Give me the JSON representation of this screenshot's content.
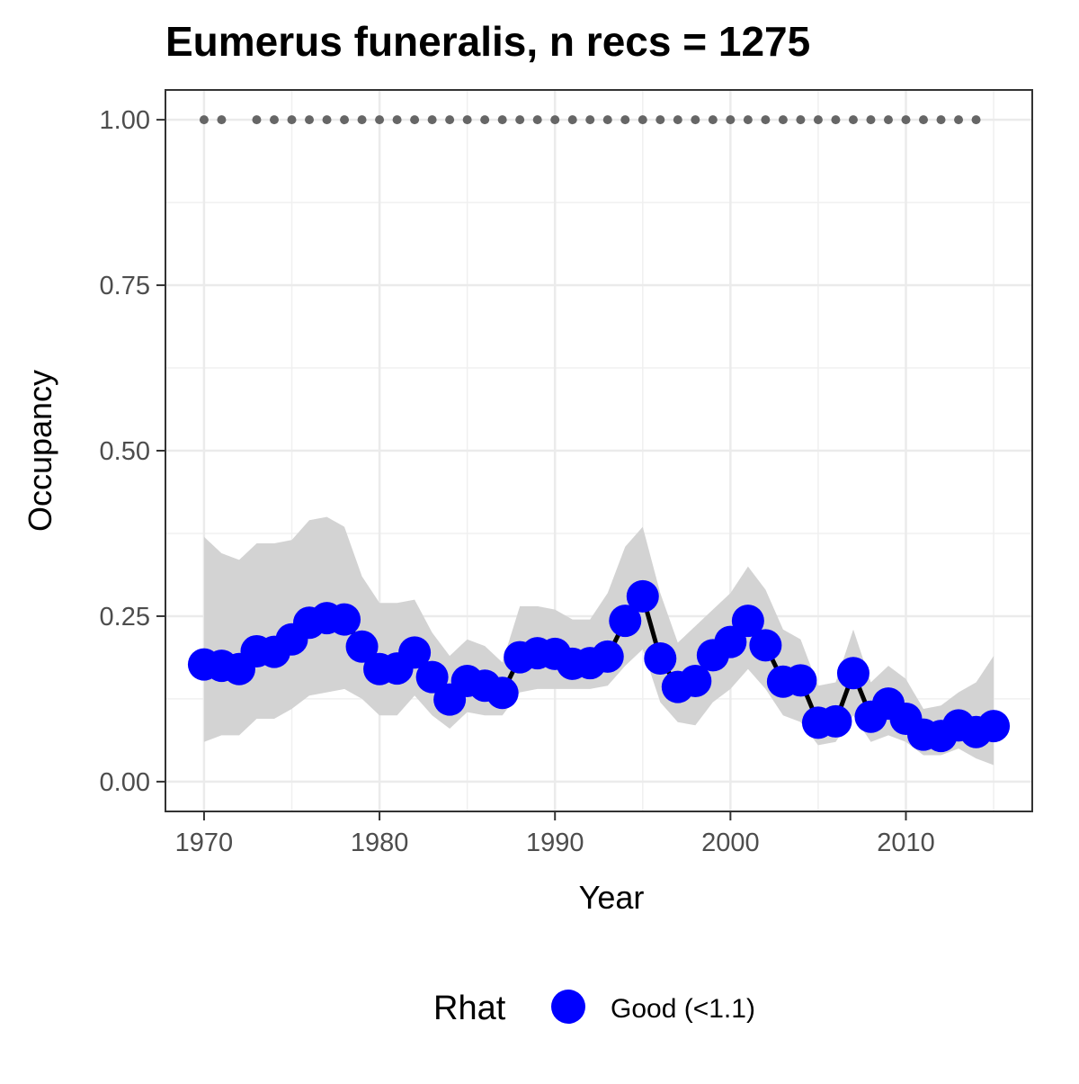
{
  "chart_data": {
    "type": "line",
    "title": "Eumerus funeralis, n recs = 1275",
    "xlabel": "Year",
    "ylabel": "Occupancy",
    "xlim": [
      1967.8,
      2017.2
    ],
    "ylim": [
      -0.045,
      1.045
    ],
    "x_ticks": [
      "1970",
      "1980",
      "1990",
      "2000",
      "2010"
    ],
    "y_ticks": [
      "0.00",
      "0.25",
      "0.50",
      "0.75",
      "1.00"
    ],
    "grid": true,
    "legend": {
      "title": "Rhat",
      "position": "bottom",
      "entries": [
        {
          "label": "Good (<1.1)",
          "color": "#0000ff"
        }
      ]
    },
    "series": [
      {
        "name": "Good (<1.1)",
        "color": "#0000ff",
        "line_color": "#000000",
        "band_color": "#d3d3d3",
        "x": [
          1970,
          1971,
          1972,
          1973,
          1974,
          1975,
          1976,
          1977,
          1978,
          1979,
          1980,
          1981,
          1982,
          1983,
          1984,
          1985,
          1986,
          1987,
          1988,
          1989,
          1990,
          1991,
          1992,
          1993,
          1994,
          1995,
          1996,
          1997,
          1998,
          1999,
          2000,
          2001,
          2002,
          2003,
          2004,
          2005,
          2006,
          2007,
          2008,
          2009,
          2010,
          2011,
          2012,
          2013,
          2014,
          2015
        ],
        "mean": [
          0.177,
          0.175,
          0.17,
          0.197,
          0.196,
          0.215,
          0.24,
          0.247,
          0.245,
          0.204,
          0.17,
          0.171,
          0.195,
          0.158,
          0.124,
          0.152,
          0.145,
          0.134,
          0.188,
          0.194,
          0.193,
          0.178,
          0.179,
          0.189,
          0.243,
          0.28,
          0.186,
          0.143,
          0.152,
          0.191,
          0.211,
          0.243,
          0.206,
          0.151,
          0.153,
          0.089,
          0.091,
          0.164,
          0.098,
          0.118,
          0.095,
          0.071,
          0.069,
          0.085,
          0.075,
          0.084
        ],
        "lower": [
          0.06,
          0.07,
          0.07,
          0.095,
          0.095,
          0.11,
          0.13,
          0.135,
          0.14,
          0.125,
          0.1,
          0.1,
          0.13,
          0.1,
          0.08,
          0.105,
          0.1,
          0.1,
          0.135,
          0.14,
          0.14,
          0.14,
          0.14,
          0.145,
          0.175,
          0.2,
          0.12,
          0.09,
          0.085,
          0.12,
          0.14,
          0.17,
          0.14,
          0.1,
          0.09,
          0.055,
          0.06,
          0.1,
          0.06,
          0.07,
          0.06,
          0.04,
          0.04,
          0.05,
          0.035,
          0.025
        ],
        "upper": [
          0.37,
          0.345,
          0.335,
          0.36,
          0.36,
          0.365,
          0.395,
          0.4,
          0.385,
          0.31,
          0.27,
          0.27,
          0.275,
          0.225,
          0.19,
          0.215,
          0.205,
          0.18,
          0.265,
          0.265,
          0.26,
          0.245,
          0.245,
          0.285,
          0.355,
          0.385,
          0.285,
          0.21,
          0.235,
          0.26,
          0.285,
          0.325,
          0.29,
          0.23,
          0.215,
          0.145,
          0.15,
          0.23,
          0.15,
          0.175,
          0.155,
          0.11,
          0.115,
          0.135,
          0.15,
          0.19
        ]
      },
      {
        "name": "",
        "type": "scatter",
        "color": "#666666",
        "x": [
          1970,
          1971,
          1973,
          1974,
          1975,
          1976,
          1977,
          1978,
          1979,
          1980,
          1981,
          1982,
          1983,
          1984,
          1985,
          1986,
          1987,
          1988,
          1989,
          1990,
          1991,
          1992,
          1993,
          1994,
          1995,
          1996,
          1997,
          1998,
          1999,
          2000,
          2001,
          2002,
          2003,
          2004,
          2005,
          2006,
          2007,
          2008,
          2009,
          2010,
          2011,
          2012,
          2013,
          2014
        ],
        "y": [
          1,
          1,
          1,
          1,
          1,
          1,
          1,
          1,
          1,
          1,
          1,
          1,
          1,
          1,
          1,
          1,
          1,
          1,
          1,
          1,
          1,
          1,
          1,
          1,
          1,
          1,
          1,
          1,
          1,
          1,
          1,
          1,
          1,
          1,
          1,
          1,
          1,
          1,
          1,
          1,
          1,
          1,
          1,
          1
        ]
      }
    ]
  }
}
